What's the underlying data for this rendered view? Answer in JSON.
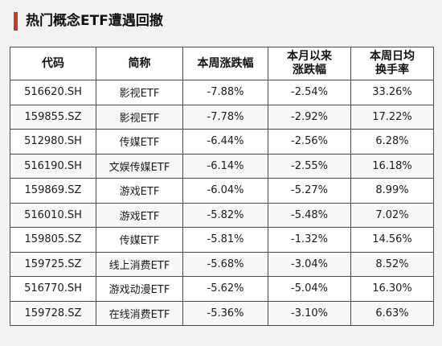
{
  "title": "热门概念ETF遭遇回撤",
  "colors": {
    "accent": "#c0392b",
    "border": "#4a4a4a",
    "background": "#f2f2f2"
  },
  "table": {
    "headers": {
      "code": "代码",
      "name": "简称",
      "week_change": "本周涨跌幅",
      "month_change_line1": "本月以来",
      "month_change_line2": "涨跌幅",
      "turnover_line1": "本周日均",
      "turnover_line2": "换手率"
    },
    "rows": [
      {
        "code": "516620.SH",
        "name": "影视ETF",
        "week_change": "-7.88%",
        "month_change": "-2.54%",
        "turnover": "33.26%"
      },
      {
        "code": "159855.SZ",
        "name": "影视ETF",
        "week_change": "-7.78%",
        "month_change": "-2.92%",
        "turnover": "17.22%"
      },
      {
        "code": "512980.SH",
        "name": "传媒ETF",
        "week_change": "-6.44%",
        "month_change": "-2.56%",
        "turnover": "6.28%"
      },
      {
        "code": "516190.SH",
        "name": "文娱传媒ETF",
        "week_change": "-6.14%",
        "month_change": "-2.55%",
        "turnover": "16.18%"
      },
      {
        "code": "159869.SZ",
        "name": "游戏ETF",
        "week_change": "-6.04%",
        "month_change": "-5.27%",
        "turnover": "8.99%"
      },
      {
        "code": "516010.SH",
        "name": "游戏ETF",
        "week_change": "-5.82%",
        "month_change": "-5.48%",
        "turnover": "7.02%"
      },
      {
        "code": "159805.SZ",
        "name": "传媒ETF",
        "week_change": "-5.81%",
        "month_change": "-1.32%",
        "turnover": "14.56%"
      },
      {
        "code": "159725.SZ",
        "name": "线上消费ETF",
        "week_change": "-5.68%",
        "month_change": "-3.04%",
        "turnover": "8.52%"
      },
      {
        "code": "516770.SH",
        "name": "游戏动漫ETF",
        "week_change": "-5.62%",
        "month_change": "-5.04%",
        "turnover": "16.30%"
      },
      {
        "code": "159728.SZ",
        "name": "在线消费ETF",
        "week_change": "-5.36%",
        "month_change": "-3.10%",
        "turnover": "6.63%"
      }
    ]
  }
}
